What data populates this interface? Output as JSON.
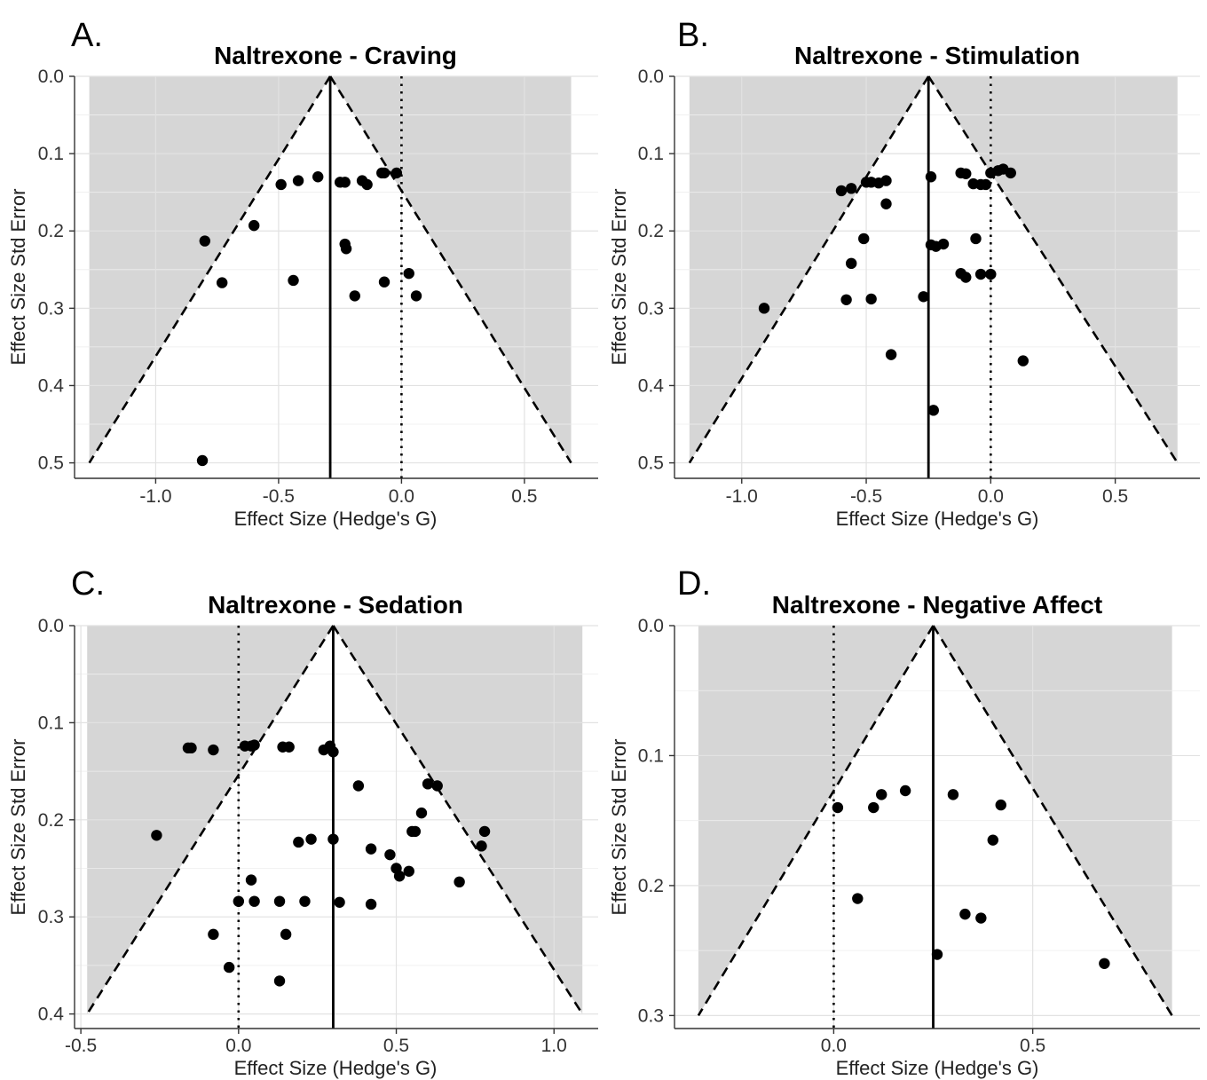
{
  "chart_data": [
    {
      "type": "scatter",
      "panel_label": "A.",
      "title": "Naltrexone - Craving",
      "xlabel": "Effect Size (Hedge's G)",
      "ylabel": "Effect Size Std Error",
      "xlim": [
        -1.33,
        0.8
      ],
      "ylim": [
        0,
        0.52
      ],
      "y_reversed": true,
      "xticks": [
        -1.0,
        -0.5,
        0.0,
        0.5
      ],
      "xtick_labels": [
        "-1.0",
        "-0.5",
        "0.0",
        "0.5"
      ],
      "yticks": [
        0.0,
        0.1,
        0.2,
        0.3,
        0.4,
        0.5
      ],
      "ytick_labels": [
        "0.0",
        "0.1",
        "0.2",
        "0.3",
        "0.4",
        "0.5"
      ],
      "grid": true,
      "pooled_effect": -0.29,
      "null_effect": 0.0,
      "funnel_max_se": 0.5,
      "shaded_x_range": [
        -1.27,
        0.69
      ],
      "points": [
        {
          "x": -0.08,
          "y": 0.125
        },
        {
          "x": -0.07,
          "y": 0.125
        },
        {
          "x": -0.02,
          "y": 0.125
        },
        {
          "x": -0.14,
          "y": 0.14
        },
        {
          "x": -0.16,
          "y": 0.135
        },
        {
          "x": -0.23,
          "y": 0.137
        },
        {
          "x": -0.25,
          "y": 0.137
        },
        {
          "x": -0.34,
          "y": 0.13
        },
        {
          "x": -0.42,
          "y": 0.135
        },
        {
          "x": -0.49,
          "y": 0.14
        },
        {
          "x": -0.6,
          "y": 0.193
        },
        {
          "x": -0.8,
          "y": 0.213
        },
        {
          "x": -0.23,
          "y": 0.217
        },
        {
          "x": -0.225,
          "y": 0.223
        },
        {
          "x": -0.73,
          "y": 0.267
        },
        {
          "x": -0.44,
          "y": 0.264
        },
        {
          "x": -0.07,
          "y": 0.266
        },
        {
          "x": 0.03,
          "y": 0.255
        },
        {
          "x": -0.19,
          "y": 0.284
        },
        {
          "x": 0.06,
          "y": 0.284
        },
        {
          "x": -0.81,
          "y": 0.497
        }
      ]
    },
    {
      "type": "scatter",
      "panel_label": "B.",
      "title": "Naltrexone - Stimulation",
      "xlabel": "Effect Size (Hedge's G)",
      "ylabel": "Effect Size Std Error",
      "xlim": [
        -1.27,
        0.84
      ],
      "ylim": [
        0,
        0.52
      ],
      "y_reversed": true,
      "xticks": [
        -1.0,
        -0.5,
        0.0,
        0.5
      ],
      "xtick_labels": [
        "-1.0",
        "-0.5",
        "0.0",
        "0.5"
      ],
      "yticks": [
        0.0,
        0.1,
        0.2,
        0.3,
        0.4,
        0.5
      ],
      "ytick_labels": [
        "0.0",
        "0.1",
        "0.2",
        "0.3",
        "0.4",
        "0.5"
      ],
      "grid": true,
      "pooled_effect": -0.25,
      "null_effect": 0.0,
      "funnel_max_se": 0.5,
      "shaded_x_range": [
        -1.21,
        0.75
      ],
      "points": [
        {
          "x": -0.6,
          "y": 0.148
        },
        {
          "x": -0.56,
          "y": 0.145
        },
        {
          "x": -0.5,
          "y": 0.137
        },
        {
          "x": -0.48,
          "y": 0.137
        },
        {
          "x": -0.45,
          "y": 0.138
        },
        {
          "x": -0.42,
          "y": 0.135
        },
        {
          "x": -0.42,
          "y": 0.165
        },
        {
          "x": -0.51,
          "y": 0.21
        },
        {
          "x": -0.56,
          "y": 0.242
        },
        {
          "x": -0.58,
          "y": 0.289
        },
        {
          "x": -0.48,
          "y": 0.288
        },
        {
          "x": -0.91,
          "y": 0.3
        },
        {
          "x": -0.4,
          "y": 0.36
        },
        {
          "x": -0.24,
          "y": 0.13
        },
        {
          "x": -0.27,
          "y": 0.285
        },
        {
          "x": -0.24,
          "y": 0.218
        },
        {
          "x": -0.22,
          "y": 0.22
        },
        {
          "x": -0.19,
          "y": 0.217
        },
        {
          "x": -0.23,
          "y": 0.432
        },
        {
          "x": -0.12,
          "y": 0.125
        },
        {
          "x": -0.1,
          "y": 0.126
        },
        {
          "x": -0.07,
          "y": 0.139
        },
        {
          "x": -0.04,
          "y": 0.14
        },
        {
          "x": -0.02,
          "y": 0.14
        },
        {
          "x": 0.0,
          "y": 0.125
        },
        {
          "x": 0.03,
          "y": 0.122
        },
        {
          "x": 0.05,
          "y": 0.12
        },
        {
          "x": 0.08,
          "y": 0.125
        },
        {
          "x": -0.06,
          "y": 0.21
        },
        {
          "x": -0.12,
          "y": 0.255
        },
        {
          "x": -0.1,
          "y": 0.26
        },
        {
          "x": -0.04,
          "y": 0.256
        },
        {
          "x": 0.0,
          "y": 0.256
        },
        {
          "x": 0.13,
          "y": 0.368
        }
      ]
    },
    {
      "type": "scatter",
      "panel_label": "C.",
      "title": "Naltrexone - Sedation",
      "xlabel": "Effect Size (Hedge's G)",
      "ylabel": "Effect Size Std Error",
      "xlim": [
        -0.52,
        1.14
      ],
      "ylim": [
        0,
        0.415
      ],
      "y_reversed": true,
      "xticks": [
        -0.5,
        0.0,
        0.5,
        1.0
      ],
      "xtick_labels": [
        "-0.5",
        "0.0",
        "0.5",
        "1.0"
      ],
      "yticks": [
        0.0,
        0.1,
        0.2,
        0.3,
        0.4
      ],
      "ytick_labels": [
        "0.0",
        "0.1",
        "0.2",
        "0.3",
        "0.4"
      ],
      "grid": true,
      "pooled_effect": 0.3,
      "null_effect": 0.0,
      "funnel_max_se": 0.4,
      "shaded_x_range": [
        -0.48,
        1.09
      ],
      "points": [
        {
          "x": -0.16,
          "y": 0.126
        },
        {
          "x": -0.15,
          "y": 0.126
        },
        {
          "x": -0.08,
          "y": 0.128
        },
        {
          "x": 0.02,
          "y": 0.124
        },
        {
          "x": 0.04,
          "y": 0.124
        },
        {
          "x": 0.05,
          "y": 0.123
        },
        {
          "x": 0.14,
          "y": 0.125
        },
        {
          "x": 0.16,
          "y": 0.125
        },
        {
          "x": 0.27,
          "y": 0.128
        },
        {
          "x": 0.29,
          "y": 0.124
        },
        {
          "x": 0.3,
          "y": 0.13
        },
        {
          "x": -0.26,
          "y": 0.216
        },
        {
          "x": 0.38,
          "y": 0.165
        },
        {
          "x": 0.6,
          "y": 0.163
        },
        {
          "x": 0.63,
          "y": 0.165
        },
        {
          "x": 0.58,
          "y": 0.193
        },
        {
          "x": 0.55,
          "y": 0.212
        },
        {
          "x": 0.56,
          "y": 0.212
        },
        {
          "x": 0.77,
          "y": 0.227
        },
        {
          "x": 0.78,
          "y": 0.212
        },
        {
          "x": 0.19,
          "y": 0.223
        },
        {
          "x": 0.23,
          "y": 0.22
        },
        {
          "x": 0.3,
          "y": 0.22
        },
        {
          "x": 0.42,
          "y": 0.23
        },
        {
          "x": 0.48,
          "y": 0.236
        },
        {
          "x": 0.5,
          "y": 0.25
        },
        {
          "x": 0.51,
          "y": 0.258
        },
        {
          "x": 0.54,
          "y": 0.253
        },
        {
          "x": 0.7,
          "y": 0.264
        },
        {
          "x": 0.04,
          "y": 0.262
        },
        {
          "x": 0.0,
          "y": 0.284
        },
        {
          "x": 0.05,
          "y": 0.284
        },
        {
          "x": 0.13,
          "y": 0.284
        },
        {
          "x": 0.21,
          "y": 0.284
        },
        {
          "x": 0.32,
          "y": 0.285
        },
        {
          "x": 0.42,
          "y": 0.287
        },
        {
          "x": -0.08,
          "y": 0.318
        },
        {
          "x": 0.15,
          "y": 0.318
        },
        {
          "x": -0.03,
          "y": 0.352
        },
        {
          "x": 0.13,
          "y": 0.366
        }
      ]
    },
    {
      "type": "scatter",
      "panel_label": "D.",
      "title": "Naltrexone - Negative Affect",
      "xlabel": "Effect Size (Hedge's G)",
      "ylabel": "Effect Size Std Error",
      "xlim": [
        -0.4,
        0.92
      ],
      "ylim": [
        0,
        0.31
      ],
      "y_reversed": true,
      "xticks": [
        0.0,
        0.5
      ],
      "xtick_labels": [
        "0.0",
        "0.5"
      ],
      "yticks": [
        0.0,
        0.1,
        0.2,
        0.3
      ],
      "ytick_labels": [
        "0.0",
        "0.1",
        "0.2",
        "0.3"
      ],
      "grid": true,
      "pooled_effect": 0.25,
      "null_effect": 0.0,
      "funnel_max_se": 0.3,
      "shaded_x_range": [
        -0.34,
        0.85
      ],
      "points": [
        {
          "x": 0.01,
          "y": 0.14
        },
        {
          "x": 0.1,
          "y": 0.14
        },
        {
          "x": 0.12,
          "y": 0.13
        },
        {
          "x": 0.18,
          "y": 0.127
        },
        {
          "x": 0.06,
          "y": 0.21
        },
        {
          "x": 0.3,
          "y": 0.13
        },
        {
          "x": 0.42,
          "y": 0.138
        },
        {
          "x": 0.4,
          "y": 0.165
        },
        {
          "x": 0.33,
          "y": 0.222
        },
        {
          "x": 0.37,
          "y": 0.225
        },
        {
          "x": 0.26,
          "y": 0.253
        },
        {
          "x": 0.68,
          "y": 0.26
        }
      ]
    }
  ]
}
